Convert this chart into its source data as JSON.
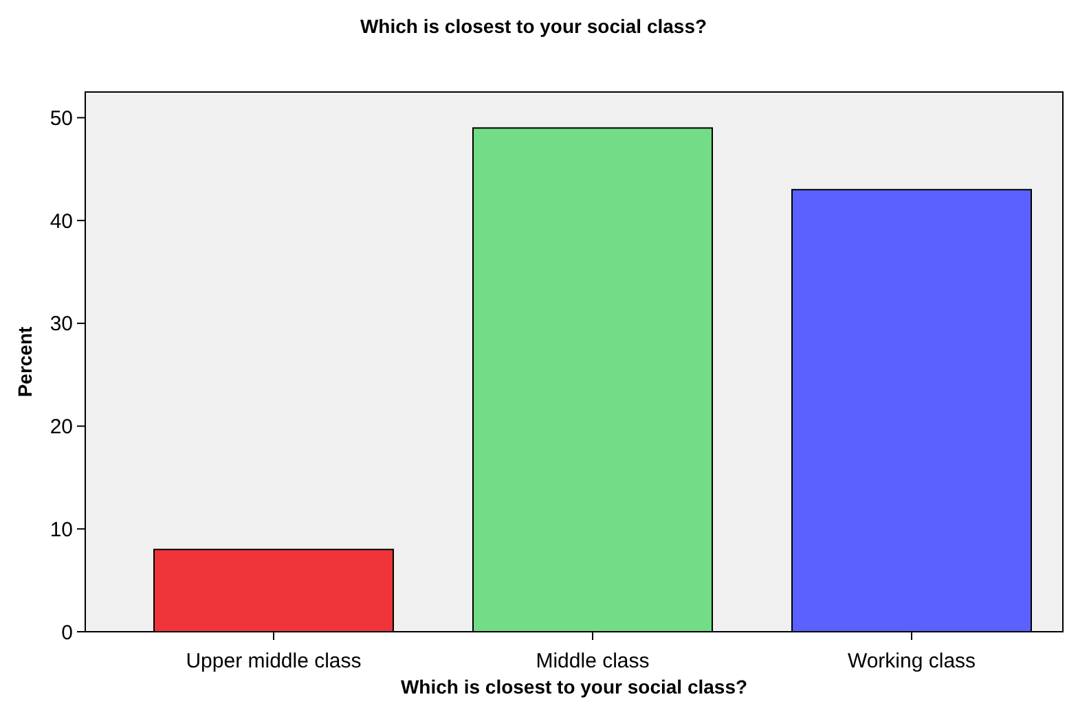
{
  "chart_data": {
    "type": "bar",
    "title": "Which is closest to your social class?",
    "xlabel": "Which is closest to your social class?",
    "ylabel": "Percent",
    "categories": [
      "Upper middle class",
      "Middle class",
      "Working class"
    ],
    "values": [
      8,
      49,
      43
    ],
    "colors": [
      "#f0353a",
      "#72dc87",
      "#5b61ff"
    ],
    "ylim": [
      0,
      52.5
    ],
    "yticks": [
      0,
      10,
      20,
      30,
      40,
      50
    ],
    "grid": false
  }
}
